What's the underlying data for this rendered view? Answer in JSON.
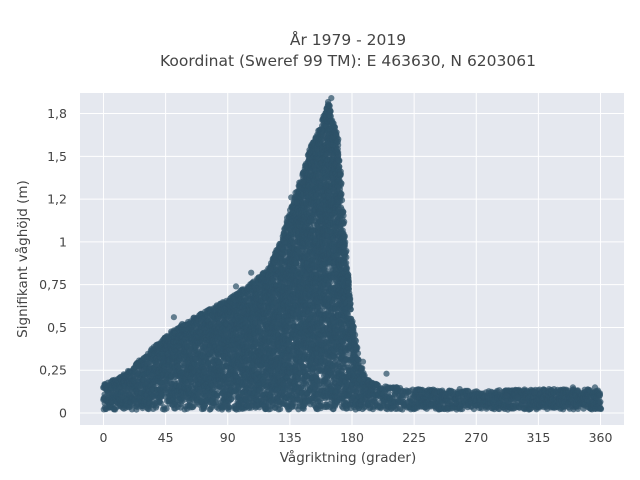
{
  "chart_data": {
    "type": "scatter",
    "title": "År 1979 - 2019",
    "subtitle": "Koordinat (Sweref 99 TM): E 463630, N 6203061",
    "xlabel": "Vågriktning (grader)",
    "ylabel": "Signifikant våghöjd (m)",
    "xlim": [
      -17,
      377
    ],
    "ylim": [
      -0.07,
      1.87
    ],
    "x_ticks": [
      0,
      45,
      90,
      135,
      180,
      225,
      270,
      315,
      360
    ],
    "x_tick_labels": [
      "0",
      "45",
      "90",
      "135",
      "180",
      "225",
      "270",
      "315",
      "360"
    ],
    "y_ticks": [
      0,
      0.25,
      0.5,
      0.75,
      1,
      1.25,
      1.5,
      1.75
    ],
    "y_tick_labels": [
      "0",
      "0,25",
      "0,5",
      "0,75",
      "1",
      "1,2",
      "1,5",
      "1,8"
    ],
    "grid": true,
    "series": [
      {
        "color": "#2e5268",
        "envelope_upper": [
          [
            0,
            0.17
          ],
          [
            10,
            0.2
          ],
          [
            20,
            0.26
          ],
          [
            30,
            0.34
          ],
          [
            40,
            0.41
          ],
          [
            50,
            0.48
          ],
          [
            60,
            0.53
          ],
          [
            70,
            0.58
          ],
          [
            80,
            0.62
          ],
          [
            90,
            0.66
          ],
          [
            100,
            0.72
          ],
          [
            110,
            0.78
          ],
          [
            120,
            0.85
          ],
          [
            130,
            1.05
          ],
          [
            140,
            1.3
          ],
          [
            150,
            1.55
          ],
          [
            157,
            1.68
          ],
          [
            163,
            1.82
          ],
          [
            170,
            1.6
          ],
          [
            175,
            1.0
          ],
          [
            180,
            0.55
          ],
          [
            185,
            0.32
          ],
          [
            190,
            0.2
          ],
          [
            200,
            0.16
          ],
          [
            225,
            0.14
          ],
          [
            270,
            0.13
          ],
          [
            315,
            0.14
          ],
          [
            360,
            0.14
          ]
        ],
        "lower_bound": 0.02,
        "outliers": [
          [
            51,
            0.56
          ],
          [
            57,
            0.52
          ],
          [
            96,
            0.74
          ],
          [
            101,
            0.59
          ],
          [
            107,
            0.82
          ],
          [
            110,
            0.73
          ],
          [
            113,
            0.72
          ],
          [
            121,
            0.84
          ],
          [
            124,
            0.88
          ],
          [
            129,
            0.97
          ],
          [
            131,
            1.0
          ],
          [
            133,
            1.14
          ],
          [
            136,
            1.26
          ],
          [
            140,
            1.23
          ],
          [
            144,
            1.35
          ],
          [
            165,
            1.84
          ],
          [
            188,
            0.3
          ],
          [
            205,
            0.23
          ],
          [
            212,
            0.15
          ],
          [
            222,
            0.13
          ],
          [
            240,
            0.12
          ],
          [
            258,
            0.14
          ],
          [
            264,
            0.13
          ],
          [
            292,
            0.1
          ],
          [
            300,
            0.09
          ],
          [
            312,
            0.12
          ],
          [
            340,
            0.15
          ],
          [
            356,
            0.15
          ]
        ]
      }
    ]
  }
}
